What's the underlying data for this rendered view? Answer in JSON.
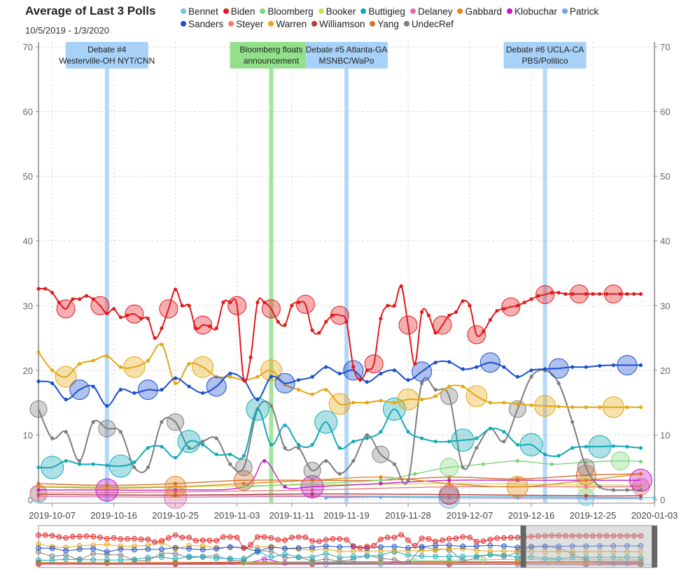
{
  "chart_data": {
    "type": "line",
    "title": "Average of Last 3 Polls",
    "subtitle": "10/5/2019 - 1/3/2020",
    "x_start": "2019-10-05",
    "x_end": "2020-01-03",
    "ylim": [
      0,
      70
    ],
    "y_ticks": [
      0,
      10,
      20,
      30,
      40,
      50,
      60,
      70
    ],
    "x_tick_labels": [
      "2019-10-07",
      "2019-10-16",
      "2019-10-25",
      "2019-11-03",
      "2019-11-11",
      "2019-11-19",
      "2019-11-28",
      "2019-12-07",
      "2019-12-16",
      "2019-12-25",
      "2020-01-03"
    ],
    "grid": true,
    "legend": "top",
    "series": [
      {
        "name": "Bennet",
        "color": "#6fc6dd",
        "days": [
          0,
          20,
          40,
          60,
          70,
          80,
          90
        ],
        "values": [
          0.8,
          0.7,
          0.6,
          0.5,
          0.5,
          0.4,
          0.3
        ]
      },
      {
        "name": "Biden",
        "color": "#e3191c",
        "days": [
          0,
          1,
          2,
          3,
          4,
          5,
          6,
          7,
          8,
          9,
          10,
          11,
          12,
          13,
          14,
          15,
          16,
          17,
          18,
          19,
          20,
          21,
          22,
          23,
          24,
          25,
          26,
          27,
          28,
          29,
          30,
          31,
          32,
          33,
          34,
          35,
          36,
          37,
          38,
          39,
          40,
          41,
          42,
          43,
          44,
          45,
          46,
          47,
          48,
          49,
          50,
          51,
          52,
          53,
          54,
          55,
          56,
          57,
          58,
          59,
          60,
          61,
          62,
          63,
          64,
          65,
          66,
          67,
          68,
          69,
          70,
          71,
          72,
          73,
          74,
          75,
          76,
          77,
          78,
          79,
          80,
          81,
          82,
          83,
          84,
          85,
          86,
          87,
          88
        ],
        "values": [
          32.6,
          32.6,
          32,
          30.5,
          29.5,
          31,
          31,
          31.5,
          31,
          30,
          28.8,
          29.5,
          28.2,
          28.5,
          28.7,
          28,
          28,
          25,
          26.5,
          29.5,
          32.5,
          30,
          30,
          26.5,
          27,
          26.8,
          26.5,
          30.5,
          30.5,
          30,
          18.5,
          22,
          30.5,
          30.5,
          29.5,
          27.5,
          27,
          30,
          30.5,
          30.2,
          26.2,
          25.8,
          27.5,
          28.5,
          28.5,
          27.5,
          20.5,
          18.5,
          20,
          21,
          28,
          30,
          30,
          33,
          27,
          21,
          29,
          28.5,
          25.8,
          27,
          28.5,
          29,
          30.7,
          30,
          25.5,
          26,
          27.8,
          29.2,
          29.5,
          29.8,
          30,
          30.5,
          31,
          31.5,
          31.7,
          32,
          32,
          31.8,
          31.8,
          31.8,
          31.8,
          31.8,
          31.8,
          31.8,
          31.8,
          31.8,
          31.8,
          31.8,
          31.8
        ]
      },
      {
        "name": "Bloomberg",
        "color": "#7ed67a",
        "days": [
          30,
          40,
          50,
          55,
          60,
          65,
          70,
          75,
          80,
          85,
          88
        ],
        "values": [
          2,
          2.5,
          3,
          4,
          5,
          5.5,
          6,
          5.5,
          5.8,
          6,
          5.9
        ]
      },
      {
        "name": "Booker",
        "color": "#cfe05a",
        "days": [
          0,
          20,
          40,
          60,
          80,
          88
        ],
        "values": [
          2,
          2,
          2.3,
          2.5,
          2.3,
          2.2
        ]
      },
      {
        "name": "Buttigieg",
        "color": "#13aab8",
        "days": [
          0,
          2,
          4,
          6,
          8,
          10,
          12,
          14,
          16,
          18,
          20,
          22,
          24,
          26,
          28,
          30,
          32,
          34,
          36,
          38,
          40,
          42,
          44,
          46,
          48,
          50,
          52,
          54,
          56,
          58,
          60,
          62,
          64,
          66,
          68,
          70,
          72,
          74,
          76,
          78,
          80,
          82,
          84,
          86,
          88
        ],
        "values": [
          5,
          5,
          6,
          5.5,
          5.5,
          5.3,
          5.2,
          5.8,
          8,
          8.2,
          6.5,
          9,
          8.5,
          7,
          7,
          6.8,
          14,
          8.5,
          11.5,
          8.5,
          8.5,
          12,
          8,
          9,
          9.5,
          10.5,
          14,
          10.5,
          9.5,
          9,
          9,
          9.2,
          9.5,
          11,
          10.5,
          8.5,
          8.5,
          7,
          6.8,
          8,
          8.2,
          8.2,
          8.3,
          8.2,
          8
        ]
      },
      {
        "name": "Delaney",
        "color": "#e36fa5",
        "days": [
          0,
          20,
          40,
          60,
          80,
          88
        ],
        "values": [
          0.5,
          0.4,
          0.5,
          0.3,
          0.2,
          0.2
        ]
      },
      {
        "name": "Gabbard",
        "color": "#e38a1b",
        "days": [
          0,
          10,
          20,
          30,
          40,
          50,
          60,
          70,
          80,
          88
        ],
        "values": [
          2,
          1.8,
          2,
          2.5,
          3,
          3.5,
          2.5,
          2,
          3,
          4
        ]
      },
      {
        "name": "Klobuchar",
        "color": "#c21ac9",
        "days": [
          0,
          10,
          20,
          30,
          33,
          36,
          40,
          50,
          60,
          70,
          80,
          88
        ],
        "values": [
          1.5,
          1.5,
          1.5,
          2,
          6,
          2,
          2,
          2.5,
          3,
          3,
          3,
          3
        ]
      },
      {
        "name": "Patrick",
        "color": "#74a6e6",
        "days": [
          42,
          50,
          60,
          70,
          80,
          88
        ],
        "values": [
          0.3,
          0.4,
          0.3,
          0.3,
          0.2,
          0.2
        ]
      },
      {
        "name": "Sanders",
        "color": "#1a4ecf",
        "days": [
          0,
          2,
          4,
          6,
          8,
          10,
          12,
          14,
          16,
          18,
          20,
          22,
          24,
          26,
          28,
          30,
          32,
          34,
          36,
          38,
          40,
          42,
          44,
          46,
          48,
          50,
          52,
          54,
          56,
          58,
          60,
          62,
          64,
          66,
          68,
          70,
          72,
          74,
          76,
          78,
          80,
          82,
          84,
          86,
          88
        ],
        "values": [
          18.3,
          18,
          15.5,
          17,
          17.5,
          14.5,
          17,
          16.5,
          17,
          17,
          18.8,
          17.5,
          16.5,
          17.5,
          19.5,
          18.5,
          15.5,
          19,
          18,
          18.5,
          19,
          20.5,
          19.5,
          20,
          18.2,
          19.5,
          20,
          18.5,
          19.8,
          21.2,
          21.3,
          20.2,
          20.5,
          21.2,
          20.5,
          19,
          20,
          20.2,
          20.3,
          20.5,
          20.5,
          20.7,
          20.8,
          20.8,
          20.8
        ]
      },
      {
        "name": "Steyer",
        "color": "#ef7a7a",
        "days": [
          0,
          20,
          40,
          60,
          80,
          88
        ],
        "values": [
          1,
          1.2,
          1.5,
          2,
          2,
          2
        ]
      },
      {
        "name": "Warren",
        "color": "#e4a612",
        "days": [
          0,
          2,
          4,
          6,
          8,
          10,
          12,
          14,
          16,
          18,
          20,
          22,
          24,
          26,
          28,
          30,
          32,
          34,
          36,
          38,
          40,
          42,
          44,
          46,
          48,
          50,
          52,
          54,
          56,
          58,
          60,
          62,
          64,
          66,
          68,
          70,
          72,
          74,
          76,
          78,
          80,
          82,
          84,
          86,
          88
        ],
        "values": [
          22.8,
          20,
          19,
          21,
          21.5,
          22.2,
          20.5,
          20.5,
          21.5,
          24,
          18,
          21,
          20.5,
          19,
          19,
          18.5,
          19,
          20,
          17.8,
          17,
          16.3,
          17,
          14.8,
          15,
          15,
          15.3,
          15,
          15.5,
          15.5,
          16,
          17.5,
          17.5,
          16,
          15,
          15,
          14.8,
          14.6,
          14.5,
          14.4,
          14.3,
          14.3,
          14.3,
          14.3,
          14.3,
          14.3
        ]
      },
      {
        "name": "Williamson",
        "color": "#b73a3a",
        "days": [
          0,
          20,
          40,
          60,
          80,
          88
        ],
        "values": [
          0.8,
          0.7,
          0.9,
          0.8,
          0.6,
          0.6
        ]
      },
      {
        "name": "Yang",
        "color": "#d86f2e",
        "days": [
          0,
          10,
          20,
          30,
          40,
          50,
          60,
          70,
          80,
          88
        ],
        "values": [
          2.5,
          2.2,
          2.5,
          3,
          3,
          3,
          3.5,
          3.2,
          3.8,
          4
        ]
      },
      {
        "name": "UndecRef",
        "color": "#7e7e7e",
        "days": [
          0,
          2,
          4,
          6,
          8,
          10,
          12,
          14,
          16,
          18,
          20,
          22,
          24,
          26,
          28,
          30,
          32,
          34,
          36,
          38,
          40,
          42,
          44,
          46,
          48,
          50,
          52,
          54,
          56,
          58,
          60,
          62,
          64,
          66,
          68,
          70,
          72,
          74,
          76,
          78,
          80,
          82,
          84,
          86,
          88
        ],
        "values": [
          14,
          9.5,
          10.5,
          6,
          12,
          11,
          10.5,
          5,
          5,
          12,
          12,
          8,
          9,
          9.5,
          5.5,
          5,
          14,
          14.5,
          8,
          8,
          4.5,
          6,
          4,
          6,
          10,
          7,
          5.5,
          3,
          18,
          17,
          16,
          5,
          8,
          11,
          9,
          14,
          19,
          20,
          18,
          12,
          5,
          2,
          1.5,
          1.5,
          1.5
        ]
      }
    ],
    "annotations": [
      {
        "label": "Debate #4 Westerville-OH NYT/CNN",
        "day": 10,
        "color": "#a7d1f7"
      },
      {
        "label": "Bloomberg floats announcement",
        "day": 34,
        "color": "#92e08a"
      },
      {
        "label": "Debate #5 Atlanta-GA MSNBC/WaPo",
        "day": 45,
        "color": "#a7d1f7"
      },
      {
        "label": "Debate #6 UCLA-CA PBS/Politico",
        "day": 74,
        "color": "#a7d1f7"
      }
    ]
  }
}
